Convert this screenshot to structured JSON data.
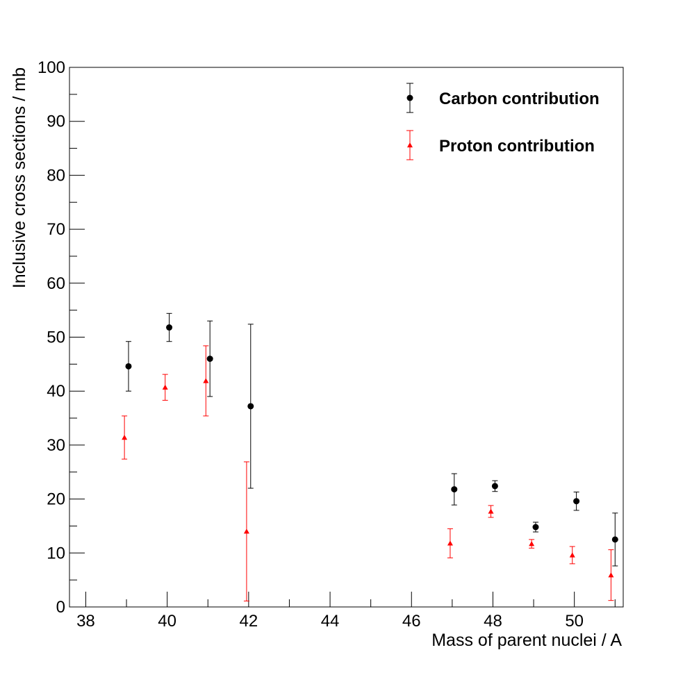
{
  "chart_data": {
    "type": "scatter",
    "title": "",
    "xlabel": "Mass of parent nuclei / A",
    "ylabel": "Inclusive cross sections / mb",
    "xlim": [
      37.6,
      51.2
    ],
    "ylim": [
      0,
      100
    ],
    "xticks": [
      38,
      40,
      42,
      44,
      46,
      48,
      50
    ],
    "xtick_labels": [
      "38",
      "40",
      "42",
      "44",
      "46",
      "48",
      "50"
    ],
    "yticks": [
      0,
      10,
      20,
      30,
      40,
      50,
      60,
      70,
      80,
      90,
      100
    ],
    "ytick_labels": [
      "0",
      "10",
      "20",
      "30",
      "40",
      "50",
      "60",
      "70",
      "80",
      "90",
      "100"
    ],
    "grid": false,
    "legend_position": "top-right",
    "series": [
      {
        "name": "Carbon contribution",
        "marker": "circle",
        "color": "#000000",
        "x": [
          39.05,
          40.05,
          41.05,
          42.05,
          47.05,
          48.05,
          49.05,
          50.05,
          51.0
        ],
        "y": [
          44.6,
          51.8,
          46.0,
          37.2,
          21.8,
          22.4,
          14.8,
          19.6,
          12.5
        ],
        "yerr": [
          4.6,
          2.6,
          7.0,
          15.2,
          2.9,
          1.0,
          0.9,
          1.7,
          4.9
        ]
      },
      {
        "name": "Proton contribution",
        "marker": "triangle",
        "color": "#ff0000",
        "x": [
          38.95,
          39.95,
          40.95,
          41.95,
          46.95,
          47.95,
          48.95,
          49.95,
          50.9
        ],
        "y": [
          31.4,
          40.7,
          41.9,
          14.0,
          11.8,
          17.7,
          11.7,
          9.6,
          5.9
        ],
        "yerr": [
          4.0,
          2.4,
          6.5,
          12.9,
          2.7,
          1.1,
          0.8,
          1.6,
          4.7
        ]
      }
    ]
  }
}
